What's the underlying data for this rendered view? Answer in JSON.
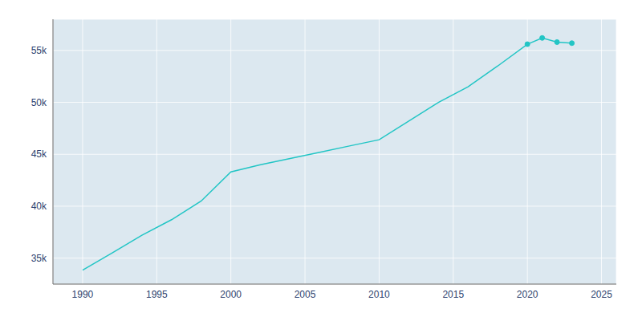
{
  "chart_data": {
    "type": "line",
    "x": [
      1990,
      1992,
      1994,
      1996,
      1998,
      2000,
      2002,
      2004,
      2006,
      2008,
      2010,
      2012,
      2014,
      2016,
      2018,
      2020,
      2021,
      2022,
      2023
    ],
    "series": [
      {
        "type": "line",
        "color": "#22c5c5",
        "values": [
          33840,
          35500,
          37200,
          38700,
          40500,
          43300,
          44000,
          44600,
          45200,
          45800,
          46400,
          48200,
          50000,
          51500,
          53500,
          55600,
          56200,
          55800,
          55700
        ]
      },
      {
        "type": "scatter",
        "marker": "o",
        "color": "#22c5c5",
        "values": [
          null,
          null,
          null,
          null,
          null,
          null,
          null,
          null,
          null,
          null,
          null,
          null,
          null,
          null,
          null,
          55600,
          56200,
          55800,
          55700
        ]
      }
    ],
    "xlim": [
      1988,
      2026
    ],
    "ylim": [
      32500,
      58000
    ],
    "xticks": [
      1990,
      1995,
      2000,
      2005,
      2010,
      2015,
      2020,
      2025
    ],
    "yticks": [
      {
        "value": 35000,
        "label": "35k"
      },
      {
        "value": 40000,
        "label": "40k"
      },
      {
        "value": 45000,
        "label": "45k"
      },
      {
        "value": 50000,
        "label": "50k"
      },
      {
        "value": 55000,
        "label": "55k"
      }
    ],
    "grid": true
  }
}
